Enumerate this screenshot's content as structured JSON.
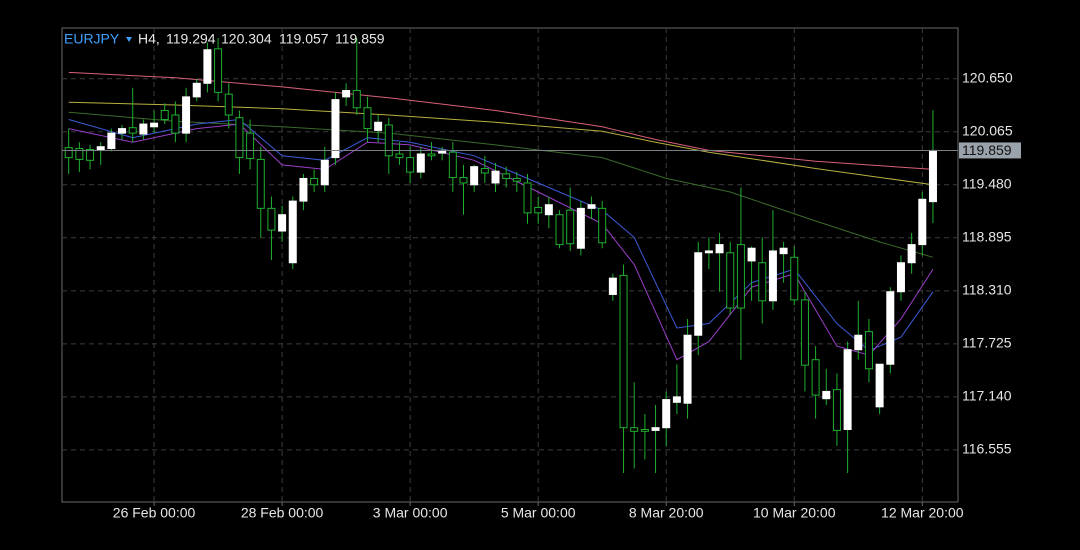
{
  "chart_data": {
    "type": "candlestick",
    "symbol": "EURJPY",
    "timeframe": "H4,",
    "categories": [
      null,
      null,
      null,
      null,
      null,
      null,
      null,
      null,
      "26 Feb 00:00",
      null,
      null,
      null,
      null,
      null,
      null,
      null,
      null,
      null,
      null,
      null,
      "28 Feb 00:00",
      null,
      null,
      null,
      null,
      null,
      null,
      null,
      null,
      null,
      null,
      null,
      "3 Mar 00:00",
      null,
      null,
      null,
      null,
      null,
      null,
      null,
      null,
      null,
      null,
      null,
      "5 Mar 00:00",
      null,
      null,
      null,
      null,
      null,
      null,
      null,
      null,
      null,
      null,
      null,
      "8 Mar 20:00",
      null,
      null,
      null,
      null,
      null,
      null,
      null,
      null,
      null,
      null,
      null,
      "10 Mar 20:00",
      null,
      null,
      null,
      null,
      null,
      null,
      null,
      null,
      null,
      null,
      null,
      "12 Mar 20:00",
      null
    ],
    "open": [
      119.89,
      119.88,
      119.87,
      119.86,
      119.88,
      120.05,
      120.11,
      120.04,
      120.12,
      120.3,
      120.25,
      120.05,
      120.45,
      120.6,
      120.98,
      120.48,
      120.22,
      120.05,
      119.76,
      119.22,
      118.97,
      118.62,
      119.3,
      119.55,
      119.48,
      119.78,
      120.45,
      120.52,
      120.33,
      120.08,
      120.14,
      119.82,
      119.78,
      119.62,
      119.82,
      119.83,
      119.84,
      119.56,
      119.48,
      119.66,
      119.5,
      119.6,
      119.55,
      119.5,
      119.23,
      119.15,
      119.15,
      119.2,
      118.78,
      119.22,
      119.22,
      118.27,
      118.48,
      116.8,
      116.78,
      116.77,
      116.8,
      117.08,
      117.07,
      117.82,
      118.73,
      118.73,
      118.73,
      118.82,
      118.64,
      118.62,
      118.2,
      118.72,
      118.68,
      118.21,
      117.55,
      117.12,
      117.22,
      116.78,
      117.66,
      117.86,
      117.03,
      117.5,
      118.3,
      118.62,
      118.82,
      119.294
    ],
    "high": [
      120.1,
      119.95,
      119.92,
      119.95,
      120.1,
      120.14,
      120.55,
      120.2,
      120.3,
      120.38,
      120.4,
      120.55,
      120.65,
      121.05,
      121.1,
      120.6,
      120.3,
      120.2,
      119.9,
      119.35,
      119.25,
      119.35,
      119.6,
      119.65,
      119.9,
      120.5,
      120.6,
      121.1,
      120.45,
      120.25,
      120.22,
      119.95,
      119.9,
      119.9,
      119.95,
      119.9,
      119.95,
      119.7,
      119.7,
      119.8,
      119.72,
      119.68,
      119.62,
      119.6,
      119.35,
      119.35,
      119.2,
      119.45,
      119.3,
      119.35,
      119.3,
      118.5,
      118.6,
      117.3,
      116.95,
      117.05,
      117.2,
      117.5,
      118.0,
      118.85,
      118.9,
      118.95,
      118.85,
      119.45,
      118.8,
      118.9,
      119.2,
      118.85,
      118.8,
      118.3,
      117.7,
      117.45,
      117.4,
      117.75,
      118.2,
      118.0,
      117.5,
      118.35,
      118.7,
      118.95,
      119.4,
      120.304
    ],
    "low": [
      119.6,
      119.62,
      119.65,
      119.7,
      119.85,
      119.98,
      119.95,
      119.98,
      120.05,
      120.15,
      119.95,
      119.95,
      120.4,
      120.5,
      120.4,
      120.1,
      119.6,
      119.65,
      118.9,
      118.65,
      118.85,
      118.55,
      119.2,
      119.4,
      119.4,
      119.7,
      120.35,
      120.25,
      119.95,
      119.95,
      119.6,
      119.7,
      119.5,
      119.55,
      119.75,
      119.75,
      119.4,
      119.15,
      119.4,
      119.5,
      119.4,
      119.45,
      119.4,
      119.05,
      119.05,
      119.0,
      118.78,
      118.75,
      118.7,
      119.1,
      118.78,
      118.2,
      116.3,
      116.35,
      116.45,
      116.3,
      116.6,
      116.95,
      116.9,
      117.6,
      118.55,
      118.3,
      118.05,
      117.55,
      118.2,
      117.95,
      118.1,
      118.4,
      118.15,
      117.2,
      116.9,
      117.05,
      116.6,
      116.3,
      117.55,
      117.3,
      116.95,
      117.4,
      118.2,
      118.5,
      118.7,
      119.057
    ],
    "close": [
      119.78,
      119.76,
      119.75,
      119.9,
      120.05,
      120.1,
      120.05,
      120.15,
      120.16,
      120.2,
      120.05,
      120.45,
      120.6,
      120.97,
      120.5,
      120.25,
      119.78,
      119.77,
      119.22,
      118.98,
      119.15,
      119.3,
      119.55,
      119.48,
      119.75,
      120.42,
      120.52,
      120.33,
      120.1,
      120.17,
      119.8,
      119.78,
      119.62,
      119.82,
      119.8,
      119.86,
      119.56,
      119.5,
      119.68,
      119.61,
      119.63,
      119.55,
      119.52,
      119.17,
      119.17,
      119.26,
      118.82,
      118.83,
      119.22,
      119.26,
      118.84,
      118.45,
      116.8,
      116.76,
      116.76,
      116.8,
      117.11,
      117.14,
      117.82,
      118.73,
      118.75,
      118.82,
      118.12,
      118.12,
      118.78,
      118.2,
      118.75,
      118.78,
      118.21,
      117.49,
      117.16,
      117.2,
      116.77,
      117.66,
      117.82,
      117.45,
      117.5,
      118.3,
      118.62,
      118.82,
      119.32,
      119.859
    ],
    "up_color": "#ffffff",
    "down_color": "#1fb030",
    "ylim": [
      115.98,
      121.21
    ],
    "yticks": [
      116.555,
      {
        "value": 117.14,
        "label": "117.140"
      },
      117.725,
      {
        "value": 118.31,
        "label": "118.310"
      },
      118.895,
      {
        "value": 119.48,
        "label": "119.480"
      },
      120.065,
      {
        "value": 120.65,
        "label": "120.650"
      }
    ],
    "grid": true,
    "overlays": [
      {
        "color": "#d9607a",
        "x": [
          0,
          10,
          20,
          30,
          40,
          50,
          55,
          60,
          70,
          81
        ],
        "values": [
          120.72,
          120.66,
          120.56,
          120.44,
          120.3,
          120.12,
          119.98,
          119.86,
          119.74,
          119.65
        ]
      },
      {
        "color": "#b8b040",
        "x": [
          0,
          10,
          20,
          30,
          40,
          50,
          55,
          60,
          70,
          81
        ],
        "values": [
          120.39,
          120.36,
          120.32,
          120.25,
          120.17,
          120.07,
          119.95,
          119.84,
          119.66,
          119.48
        ]
      },
      {
        "color": "#3a6a2a",
        "x": [
          0,
          10,
          20,
          30,
          40,
          50,
          56,
          62,
          70,
          76,
          81
        ],
        "values": [
          120.28,
          120.18,
          120.12,
          120.05,
          119.92,
          119.78,
          119.55,
          119.4,
          119.08,
          118.85,
          118.68
        ]
      },
      {
        "color": "#3d5ad8",
        "x": [
          0,
          6,
          12,
          16,
          20,
          24,
          28,
          32,
          38,
          44,
          50,
          53,
          57,
          60,
          64,
          68,
          72,
          75,
          78,
          81
        ],
        "values": [
          120.2,
          120.0,
          120.15,
          120.2,
          119.8,
          119.75,
          120.0,
          119.95,
          119.8,
          119.5,
          119.2,
          118.9,
          117.9,
          117.95,
          118.4,
          118.55,
          117.95,
          117.65,
          117.8,
          118.3
        ]
      },
      {
        "color": "#9a3ec8",
        "x": [
          0,
          6,
          12,
          16,
          20,
          24,
          28,
          32,
          38,
          44,
          50,
          53,
          57,
          60,
          64,
          68,
          72,
          75,
          78,
          81
        ],
        "values": [
          120.1,
          119.95,
          120.1,
          120.15,
          119.7,
          119.65,
          119.95,
          119.92,
          119.75,
          119.4,
          119.05,
          118.6,
          117.55,
          117.75,
          118.35,
          118.5,
          117.7,
          117.6,
          118.0,
          118.55
        ]
      }
    ]
  }
}
